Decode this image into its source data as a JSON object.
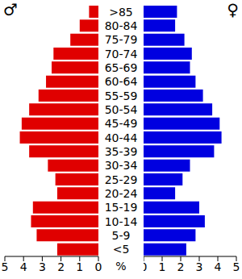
{
  "chart_data": {
    "type": "bar",
    "orientation": "horizontal",
    "xlabel": "%",
    "categories": [
      "<5",
      "5-9",
      "10-14",
      "15-19",
      "20-24",
      "25-29",
      "30-34",
      "35-39",
      "40-44",
      "45-49",
      "50-54",
      "55-59",
      "60-64",
      "65-69",
      "70-74",
      "75-79",
      "80-84",
      ">85"
    ],
    "series": [
      {
        "name": "♂",
        "color": "#e00000",
        "values": [
          2.2,
          3.3,
          3.6,
          3.5,
          2.2,
          2.3,
          2.7,
          3.7,
          4.2,
          4.1,
          3.7,
          3.2,
          2.8,
          2.5,
          2.4,
          1.5,
          1.0,
          0.5
        ]
      },
      {
        "name": "♀",
        "color": "#0000e0",
        "values": [
          2.3,
          2.8,
          3.3,
          3.0,
          1.7,
          2.1,
          2.5,
          3.8,
          4.2,
          4.1,
          3.7,
          3.2,
          2.8,
          2.5,
          2.6,
          2.2,
          1.7,
          1.8
        ]
      }
    ],
    "xlim": [
      0,
      5
    ],
    "xticks": [
      0,
      1,
      2,
      3,
      4,
      5
    ]
  }
}
